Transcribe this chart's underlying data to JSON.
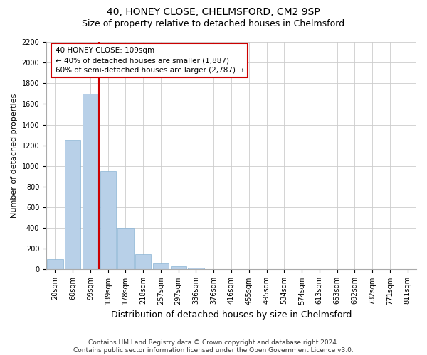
{
  "title": "40, HONEY CLOSE, CHELMSFORD, CM2 9SP",
  "subtitle": "Size of property relative to detached houses in Chelmsford",
  "xlabel": "Distribution of detached houses by size in Chelmsford",
  "ylabel": "Number of detached properties",
  "categories": [
    "20sqm",
    "60sqm",
    "99sqm",
    "139sqm",
    "178sqm",
    "218sqm",
    "257sqm",
    "297sqm",
    "336sqm",
    "376sqm",
    "416sqm",
    "455sqm",
    "495sqm",
    "534sqm",
    "574sqm",
    "613sqm",
    "653sqm",
    "692sqm",
    "732sqm",
    "771sqm",
    "811sqm"
  ],
  "values": [
    100,
    1250,
    1700,
    950,
    400,
    150,
    60,
    30,
    20,
    0,
    0,
    0,
    0,
    0,
    0,
    0,
    0,
    0,
    0,
    0,
    0
  ],
  "bar_color": "#b8d0e8",
  "bar_edge_color": "#8ab4d4",
  "grid_color": "#cccccc",
  "vline_color": "#cc0000",
  "vline_x_index": 2,
  "annotation_text": "40 HONEY CLOSE: 109sqm\n← 40% of detached houses are smaller (1,887)\n60% of semi-detached houses are larger (2,787) →",
  "annotation_box_color": "#cc0000",
  "ylim": [
    0,
    2200
  ],
  "yticks": [
    0,
    200,
    400,
    600,
    800,
    1000,
    1200,
    1400,
    1600,
    1800,
    2000,
    2200
  ],
  "footnote": "Contains HM Land Registry data © Crown copyright and database right 2024.\nContains public sector information licensed under the Open Government Licence v3.0.",
  "title_fontsize": 10,
  "subtitle_fontsize": 9,
  "ylabel_fontsize": 8,
  "xlabel_fontsize": 9,
  "tick_fontsize": 7,
  "annotation_fontsize": 7.5,
  "footnote_fontsize": 6.5
}
